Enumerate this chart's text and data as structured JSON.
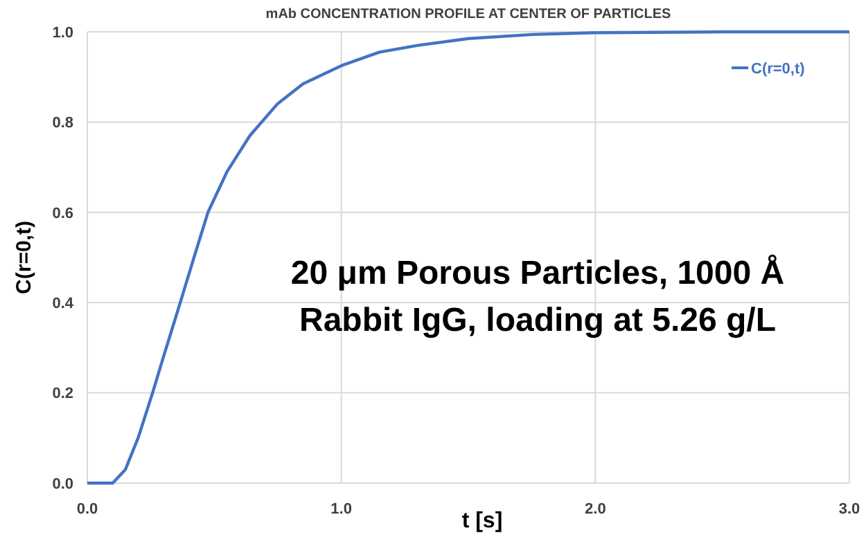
{
  "chart_data": {
    "type": "line",
    "title": "mAb CONCENTRATION PROFILE AT CENTER OF  PARTICLES",
    "xlabel": "t  [s]",
    "ylabel": "C(r=0,t)",
    "x": [
      0,
      0.05,
      0.1,
      0.15,
      0.2,
      0.257,
      0.3,
      0.366,
      0.42,
      0.475,
      0.55,
      0.64,
      0.748,
      0.85,
      1.0,
      1.15,
      1.3,
      1.5,
      1.75,
      2.0,
      2.5,
      3.0
    ],
    "series": [
      {
        "name": "C(r=0,t)",
        "color": "#4472c4",
        "values": [
          0,
          0,
          0,
          0.03,
          0.1,
          0.2,
          0.28,
          0.4,
          0.5,
          0.6,
          0.69,
          0.77,
          0.84,
          0.885,
          0.925,
          0.955,
          0.97,
          0.985,
          0.994,
          0.998,
          1.0,
          1.0
        ]
      }
    ],
    "xlim": [
      0,
      3
    ],
    "xticks": [
      {
        "value": 0,
        "label": "0.0"
      },
      {
        "value": 1,
        "label": "1.0"
      },
      {
        "value": 2,
        "label": "2.0"
      },
      {
        "value": 3,
        "label": "3.0"
      }
    ],
    "ylim": [
      0,
      1
    ],
    "yticks": [
      {
        "value": 0,
        "label": "0.0"
      },
      {
        "value": 0.2,
        "label": "0.2"
      },
      {
        "value": 0.4,
        "label": "0.4"
      },
      {
        "value": 0.6,
        "label": "0.6"
      },
      {
        "value": 0.8,
        "label": "0.8"
      },
      {
        "value": 1,
        "label": "1.0"
      }
    ],
    "grid": true,
    "legend": "top right",
    "marker": "none",
    "line_style": "solid",
    "annotations": [
      "20 μm Porous Particles, 1000 Å",
      "Rabbit IgG, loading at 5.26 g/L"
    ]
  }
}
